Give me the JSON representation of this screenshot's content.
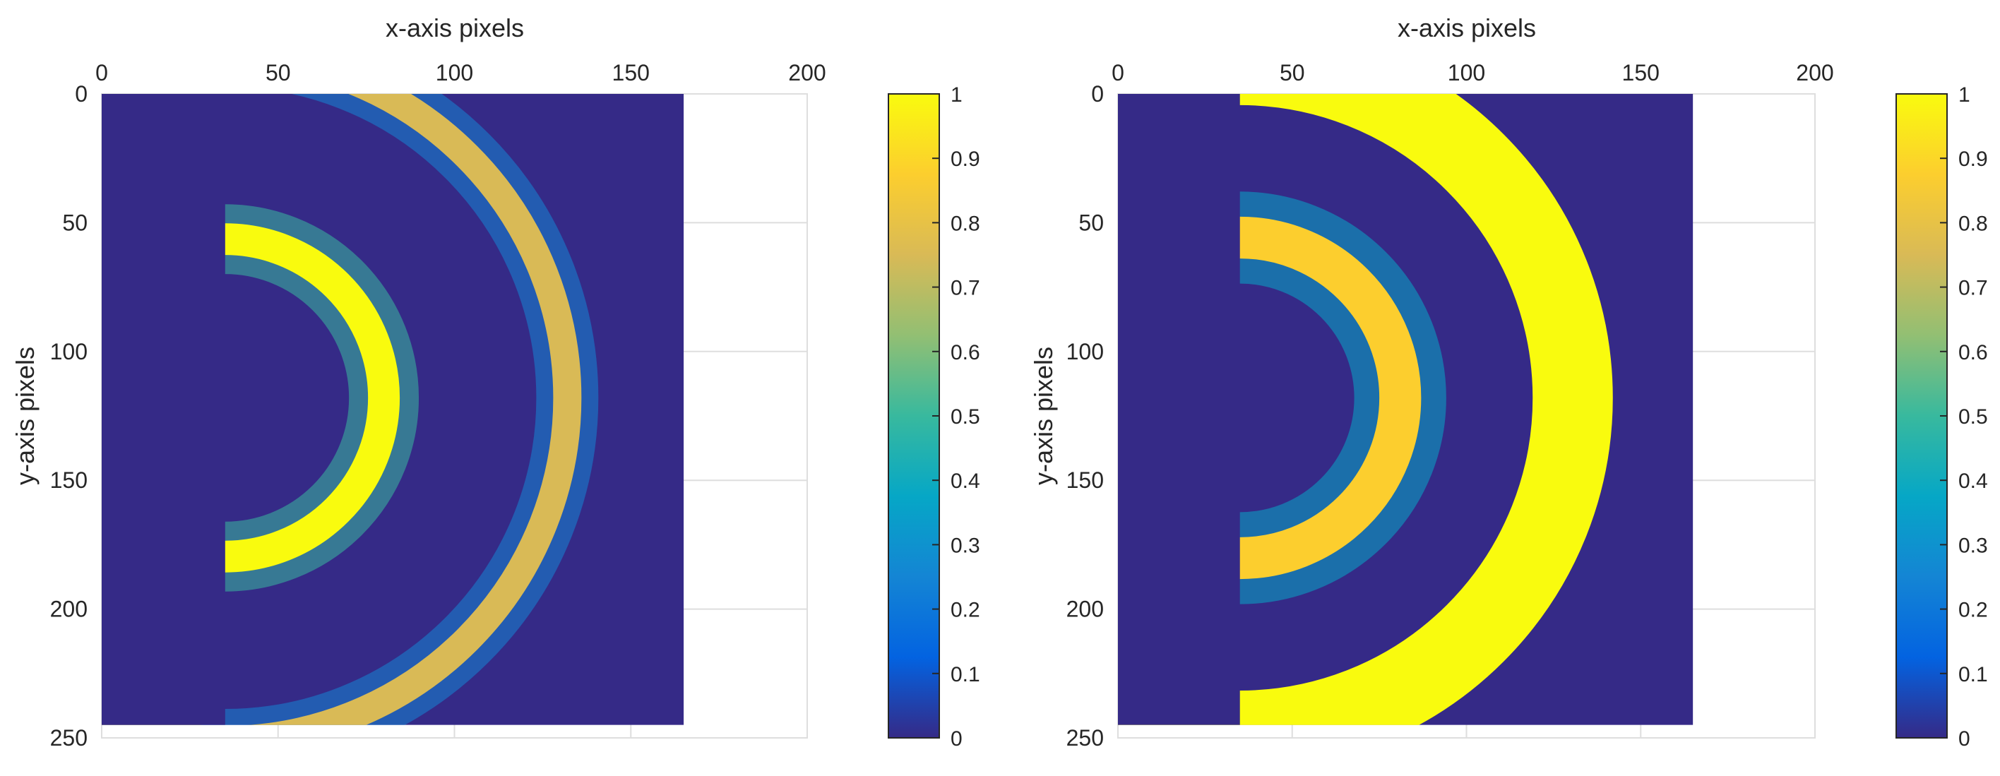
{
  "chart_data": [
    {
      "type": "heatmap",
      "title": "",
      "xlabel": "x-axis pixels",
      "ylabel": "y-axis pixels",
      "xlim": [
        0,
        200
      ],
      "ylim": [
        0,
        250
      ],
      "y_reversed": true,
      "x_ticks": [
        "0",
        "50",
        "100",
        "150",
        "200"
      ],
      "y_ticks": [
        "0",
        "50",
        "100",
        "150",
        "200",
        "250"
      ],
      "data_extent": {
        "x": [
          0,
          165
        ],
        "y": [
          0,
          245
        ]
      },
      "grid": true,
      "colormap": "parula",
      "colorbar": {
        "range": [
          0,
          1
        ],
        "ticks": [
          "0",
          "0.1",
          "0.2",
          "0.3",
          "0.4",
          "0.5",
          "0.6",
          "0.7",
          "0.8",
          "0.9",
          "1"
        ]
      },
      "features": [
        {
          "shape": "arc",
          "cx": 35,
          "cy": 118,
          "r": 45,
          "thickness": 9,
          "value": 0.95
        },
        {
          "shape": "arc",
          "cx": 35,
          "cy": 118,
          "r": 97,
          "thickness": 8,
          "value": 0.75
        }
      ]
    },
    {
      "type": "heatmap",
      "title": "",
      "xlabel": "x-axis pixels",
      "ylabel": "y-axis pixels",
      "xlim": [
        0,
        200
      ],
      "ylim": [
        0,
        250
      ],
      "y_reversed": true,
      "x_ticks": [
        "0",
        "50",
        "100",
        "150",
        "200"
      ],
      "y_ticks": [
        "0",
        "50",
        "100",
        "150",
        "200",
        "250"
      ],
      "data_extent": {
        "x": [
          0,
          165
        ],
        "y": [
          0,
          245
        ]
      },
      "grid": true,
      "colormap": "parula",
      "colorbar": {
        "range": [
          0,
          1
        ],
        "ticks": [
          "0",
          "0.1",
          "0.2",
          "0.3",
          "0.4",
          "0.5",
          "0.6",
          "0.7",
          "0.8",
          "0.9",
          "1"
        ]
      },
      "features": [
        {
          "shape": "arc",
          "cx": 35,
          "cy": 118,
          "r": 46,
          "thickness": 12,
          "value": 0.9
        },
        {
          "shape": "solid-ring",
          "cx": 35,
          "cy": 118,
          "r_inner": 84,
          "r_outer": 107,
          "value": 1.0
        }
      ]
    }
  ],
  "colors": {
    "background": "#ffffff",
    "axes_text": "#262626",
    "grid": "#dedede",
    "parula": [
      "#352a87",
      "#0363e1",
      "#1485d4",
      "#06a7c6",
      "#38b99e",
      "#92bf73",
      "#d9ba56",
      "#fcce2e",
      "#f9fb0e"
    ]
  }
}
